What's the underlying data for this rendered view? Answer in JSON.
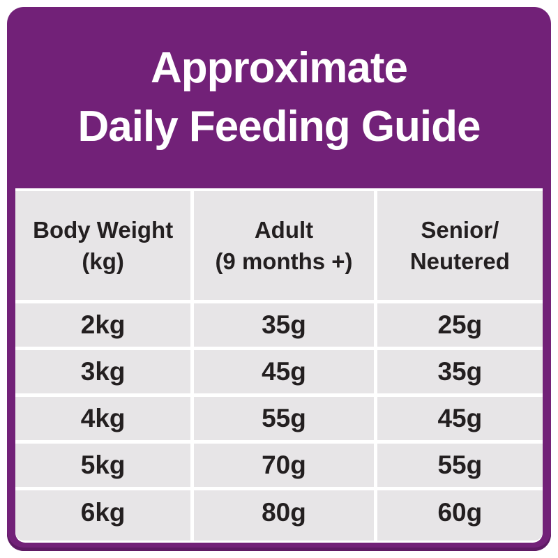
{
  "title": {
    "line1": "Approximate",
    "line2": "Daily Feeding Guide"
  },
  "table": {
    "columns": [
      {
        "line1": "Body Weight",
        "line2": "(kg)"
      },
      {
        "line1": "Adult",
        "line2": "(9 months +)"
      },
      {
        "line1": "Senior/",
        "line2": "Neutered"
      }
    ],
    "rows": [
      [
        "2kg",
        "35g",
        "25g"
      ],
      [
        "3kg",
        "45g",
        "35g"
      ],
      [
        "4kg",
        "55g",
        "45g"
      ],
      [
        "5kg",
        "70g",
        "55g"
      ],
      [
        "6kg",
        "80g",
        "60g"
      ]
    ]
  },
  "colors": {
    "brand_purple": "#722178",
    "purple_shadow": "#5e1a64",
    "cell_gray": "#e7e5e7",
    "text_dark": "#231f20",
    "gutter_white": "#ffffff"
  }
}
